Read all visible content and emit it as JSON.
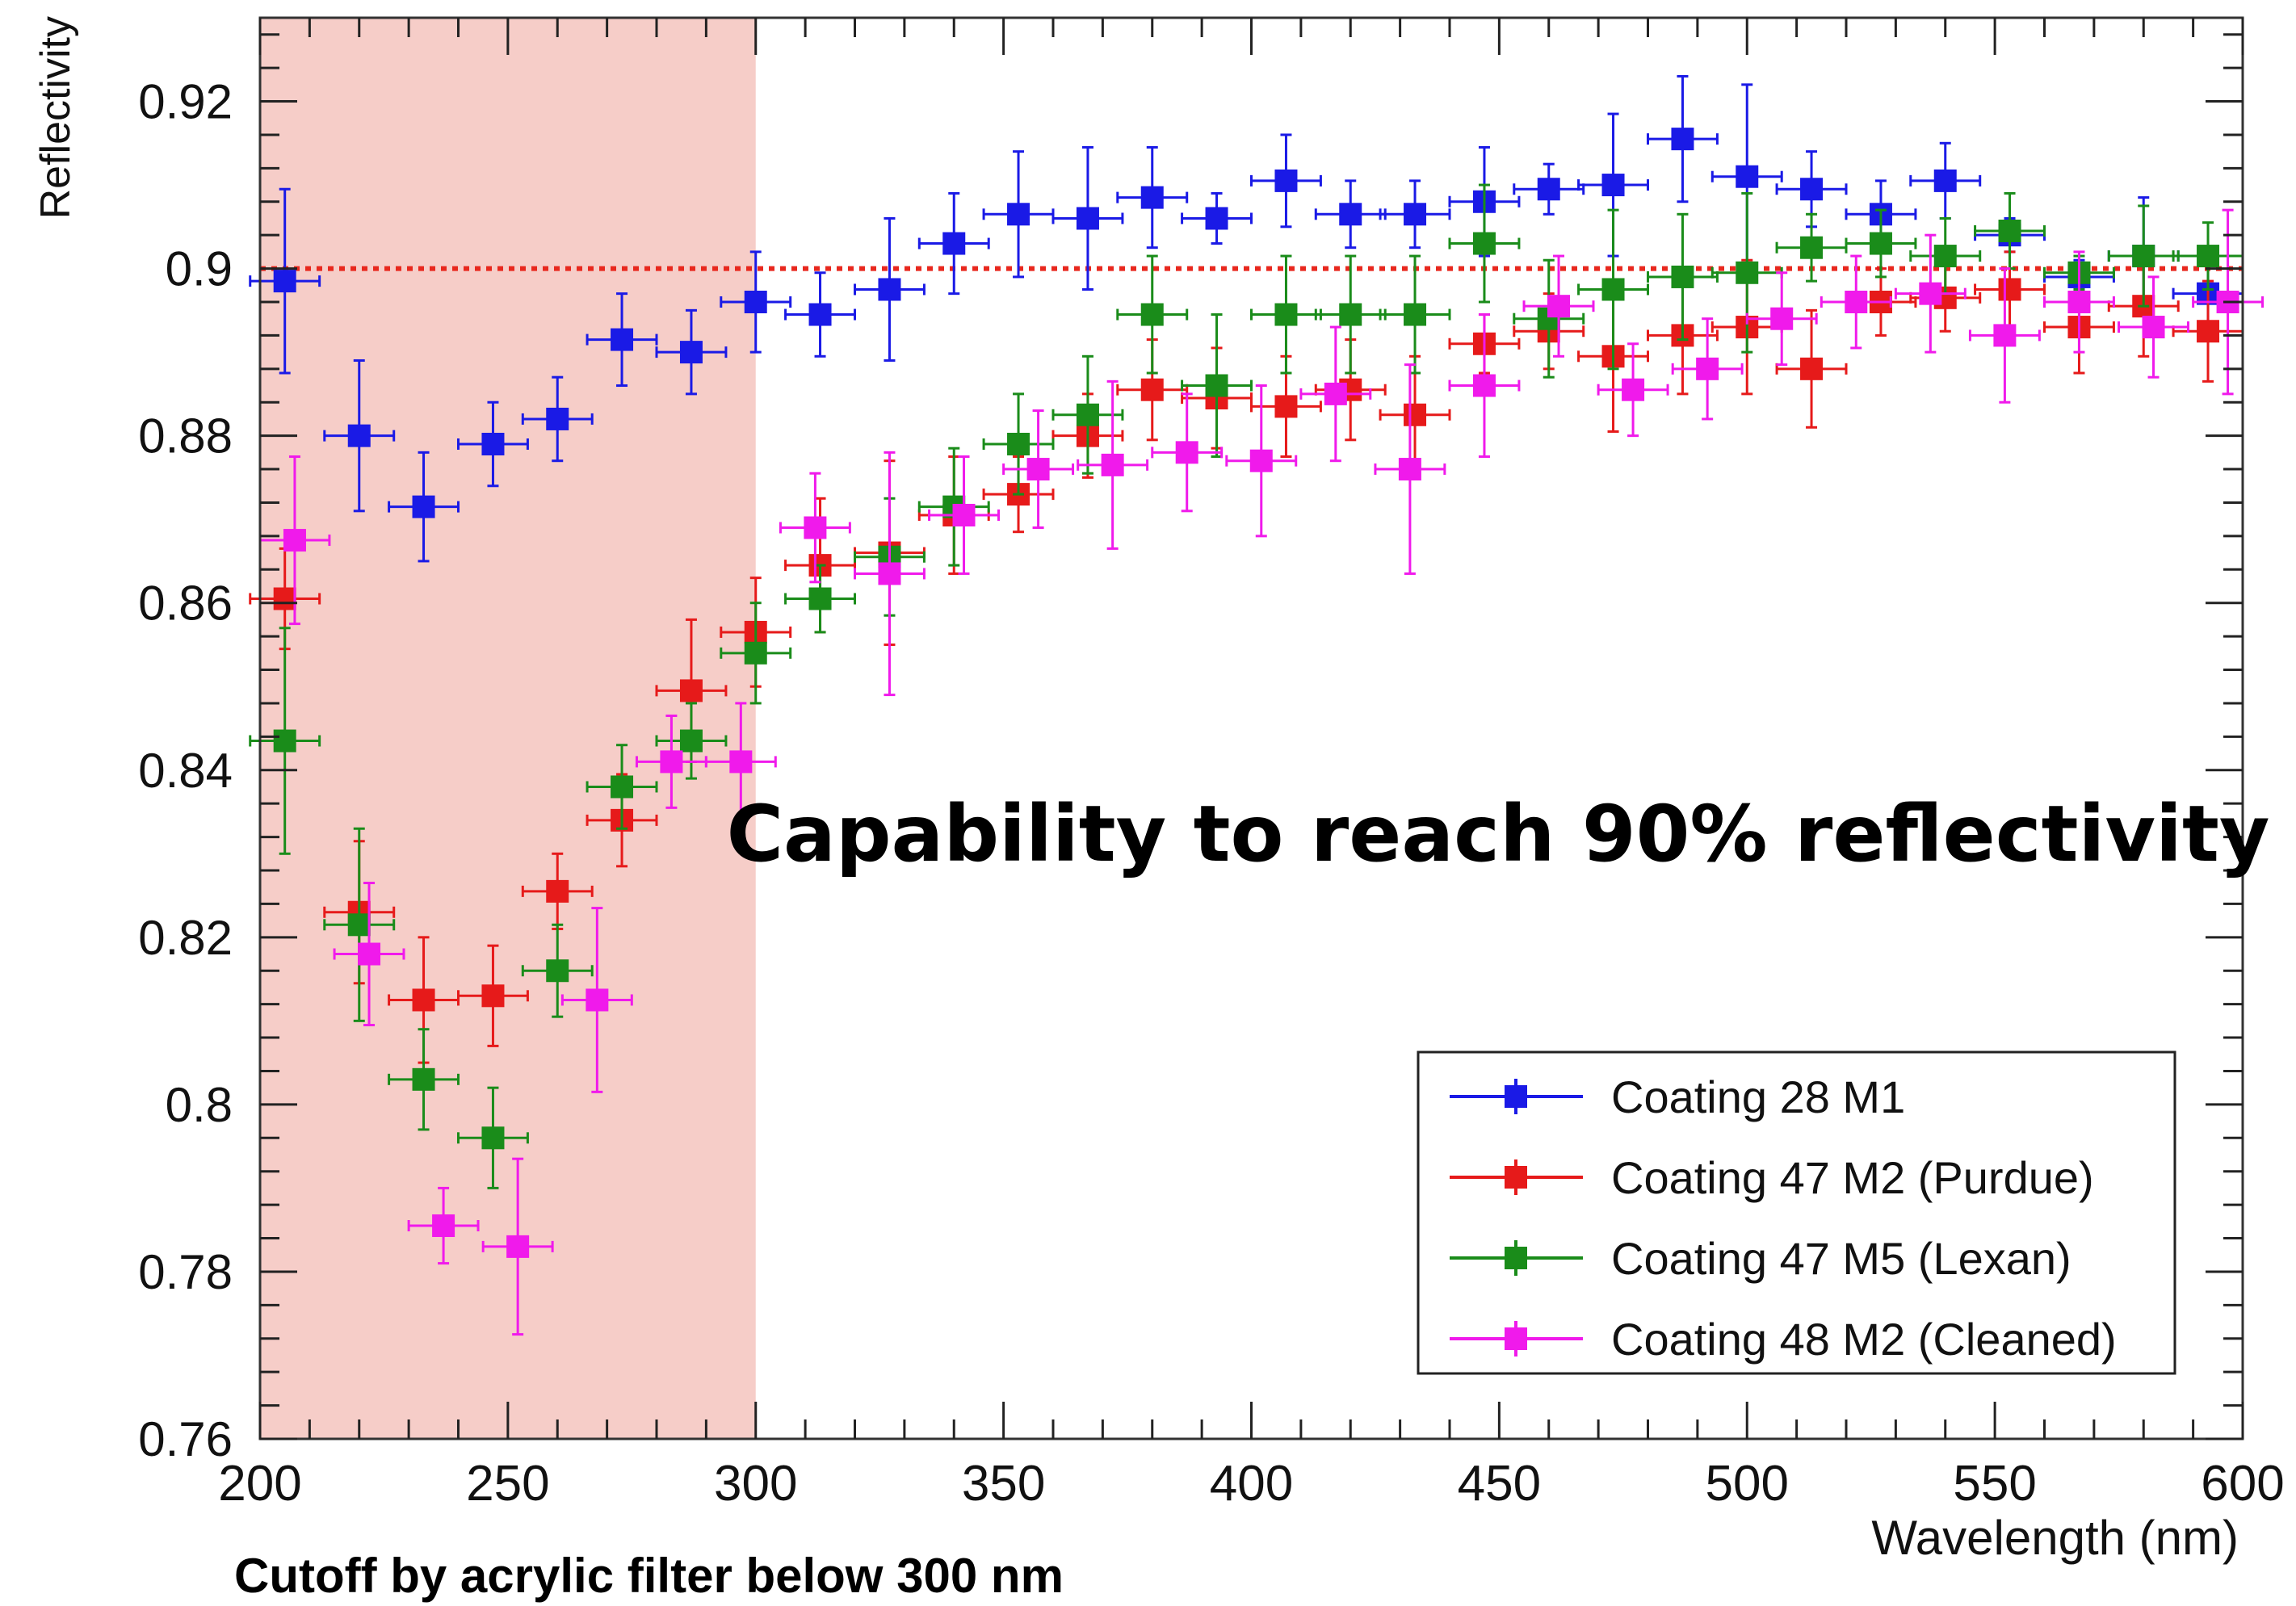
{
  "chart_data": {
    "type": "scatter",
    "xlabel": "Wavelength (nm)",
    "ylabel": "Reflectivity",
    "xlim": [
      200,
      600
    ],
    "ylim": [
      0.76,
      0.93
    ],
    "x_ticks": [
      200,
      250,
      300,
      350,
      400,
      450,
      500,
      550,
      600
    ],
    "x_tick_labels": [
      "200",
      "250",
      "300",
      "350",
      "400",
      "450",
      "500",
      "550",
      "600"
    ],
    "y_ticks": [
      0.76,
      0.78,
      0.8,
      0.82,
      0.84,
      0.86,
      0.88,
      0.9,
      0.92
    ],
    "y_tick_labels": [
      "0.76",
      "0.78",
      "0.8",
      "0.82",
      "0.84",
      "0.86",
      "0.88",
      "0.9",
      "0.92"
    ],
    "grid": false,
    "legend_position": "bottom-right",
    "reference_line": {
      "y": 0.9,
      "color": "#e8281e",
      "style": "dotted"
    },
    "shaded_region": {
      "x": [
        200,
        300
      ],
      "color": "#f6cdc8",
      "label": "Cutoff by acrylic filter below 300 nm"
    },
    "annotation": "Capability to reach 90% reflectivity",
    "series": [
      {
        "name": "Coating 28 M1",
        "color": "#1a1ae6",
        "x_err": 7,
        "points": [
          [
            205,
            0.8985,
            0.011
          ],
          [
            220,
            0.88,
            0.009
          ],
          [
            233,
            0.8715,
            0.0065
          ],
          [
            247,
            0.879,
            0.005
          ],
          [
            260,
            0.882,
            0.005
          ],
          [
            273,
            0.8915,
            0.0055
          ],
          [
            287,
            0.89,
            0.005
          ],
          [
            300,
            0.896,
            0.006
          ],
          [
            313,
            0.8945,
            0.005
          ],
          [
            327,
            0.8975,
            0.0085
          ],
          [
            340,
            0.903,
            0.006
          ],
          [
            353,
            0.9065,
            0.0075
          ],
          [
            367,
            0.906,
            0.0085
          ],
          [
            380,
            0.9085,
            0.006
          ],
          [
            393,
            0.906,
            0.003
          ],
          [
            407,
            0.9105,
            0.0055
          ],
          [
            420,
            0.9065,
            0.004
          ],
          [
            433,
            0.9065,
            0.004
          ],
          [
            447,
            0.908,
            0.0065
          ],
          [
            460,
            0.9095,
            0.003
          ],
          [
            473,
            0.91,
            0.0085
          ],
          [
            487,
            0.9155,
            0.0075
          ],
          [
            500,
            0.911,
            0.011
          ],
          [
            513,
            0.9095,
            0.0045
          ],
          [
            527,
            0.9065,
            0.004
          ],
          [
            540,
            0.9105,
            0.0045
          ],
          [
            553,
            0.904,
            0.002
          ],
          [
            567,
            0.899,
            0.002
          ],
          [
            580,
            0.9015,
            0.007
          ],
          [
            593,
            0.897,
            0.005
          ]
        ]
      },
      {
        "name": "Coating 47 M2 (Purdue)",
        "color": "#e61a1a",
        "x_err": 7,
        "points": [
          [
            205,
            0.8605,
            0.006
          ],
          [
            220,
            0.823,
            0.0085
          ],
          [
            233,
            0.8125,
            0.0075
          ],
          [
            247,
            0.813,
            0.006
          ],
          [
            260,
            0.8255,
            0.0045
          ],
          [
            273,
            0.834,
            0.0055
          ],
          [
            287,
            0.8495,
            0.0085
          ],
          [
            300,
            0.8565,
            0.0065
          ],
          [
            313,
            0.8645,
            0.008
          ],
          [
            327,
            0.866,
            0.011
          ],
          [
            340,
            0.8705,
            0.007
          ],
          [
            353,
            0.873,
            0.0045
          ],
          [
            367,
            0.88,
            0.005
          ],
          [
            380,
            0.8855,
            0.006
          ],
          [
            393,
            0.8845,
            0.006
          ],
          [
            407,
            0.8835,
            0.006
          ],
          [
            420,
            0.8855,
            0.006
          ],
          [
            433,
            0.8825,
            0.007
          ],
          [
            447,
            0.891,
            0.0035
          ],
          [
            460,
            0.8925,
            0.0045
          ],
          [
            473,
            0.8895,
            0.009
          ],
          [
            487,
            0.892,
            0.007
          ],
          [
            500,
            0.893,
            0.008
          ],
          [
            513,
            0.888,
            0.007
          ],
          [
            527,
            0.896,
            0.004
          ],
          [
            540,
            0.8965,
            0.004
          ],
          [
            553,
            0.8975,
            0.0045
          ],
          [
            567,
            0.893,
            0.0055
          ],
          [
            580,
            0.8955,
            0.006
          ],
          [
            593,
            0.8925,
            0.006
          ]
        ]
      },
      {
        "name": "Coating 47 M5 (Lexan)",
        "color": "#1a8c1a",
        "x_err": 7,
        "points": [
          [
            205,
            0.8435,
            0.0135
          ],
          [
            220,
            0.8215,
            0.0115
          ],
          [
            233,
            0.803,
            0.006
          ],
          [
            247,
            0.796,
            0.006
          ],
          [
            260,
            0.816,
            0.0055
          ],
          [
            273,
            0.838,
            0.005
          ],
          [
            287,
            0.8435,
            0.0045
          ],
          [
            300,
            0.854,
            0.006
          ],
          [
            313,
            0.8605,
            0.004
          ],
          [
            327,
            0.8655,
            0.007
          ],
          [
            340,
            0.8715,
            0.007
          ],
          [
            353,
            0.879,
            0.006
          ],
          [
            367,
            0.8825,
            0.007
          ],
          [
            380,
            0.8945,
            0.007
          ],
          [
            393,
            0.886,
            0.0085
          ],
          [
            407,
            0.8945,
            0.007
          ],
          [
            420,
            0.8945,
            0.007
          ],
          [
            433,
            0.8945,
            0.007
          ],
          [
            447,
            0.903,
            0.007
          ],
          [
            460,
            0.894,
            0.007
          ],
          [
            473,
            0.8975,
            0.0095
          ],
          [
            487,
            0.899,
            0.0075
          ],
          [
            500,
            0.8995,
            0.0095
          ],
          [
            513,
            0.9025,
            0.004
          ],
          [
            527,
            0.903,
            0.004
          ],
          [
            540,
            0.9015,
            0.0045
          ],
          [
            553,
            0.9045,
            0.0045
          ],
          [
            567,
            0.8995,
            0.002
          ],
          [
            580,
            0.9015,
            0.006
          ],
          [
            593,
            0.9015,
            0.004
          ]
        ]
      },
      {
        "name": "Coating 48 M2 (Cleaned)",
        "color": "#f01aeb",
        "x_err": 7,
        "points": [
          [
            207,
            0.8675,
            0.01
          ],
          [
            222,
            0.818,
            0.0085
          ],
          [
            237,
            0.7855,
            0.0045
          ],
          [
            252,
            0.783,
            0.0105
          ],
          [
            268,
            0.8125,
            0.011
          ],
          [
            283,
            0.841,
            0.0055
          ],
          [
            297,
            0.841,
            0.007
          ],
          [
            312,
            0.869,
            0.0065
          ],
          [
            327,
            0.8635,
            0.0145
          ],
          [
            342,
            0.8705,
            0.007
          ],
          [
            357,
            0.876,
            0.007
          ],
          [
            372,
            0.8765,
            0.01
          ],
          [
            387,
            0.878,
            0.007
          ],
          [
            402,
            0.877,
            0.009
          ],
          [
            417,
            0.885,
            0.008
          ],
          [
            432,
            0.876,
            0.0125
          ],
          [
            447,
            0.886,
            0.0085
          ],
          [
            462,
            0.8955,
            0.006
          ],
          [
            477,
            0.8855,
            0.0055
          ],
          [
            492,
            0.888,
            0.006
          ],
          [
            507,
            0.894,
            0.0055
          ],
          [
            522,
            0.896,
            0.0055
          ],
          [
            537,
            0.897,
            0.007
          ],
          [
            552,
            0.892,
            0.008
          ],
          [
            567,
            0.896,
            0.006
          ],
          [
            582,
            0.893,
            0.006
          ],
          [
            597,
            0.896,
            0.011
          ]
        ]
      }
    ]
  }
}
